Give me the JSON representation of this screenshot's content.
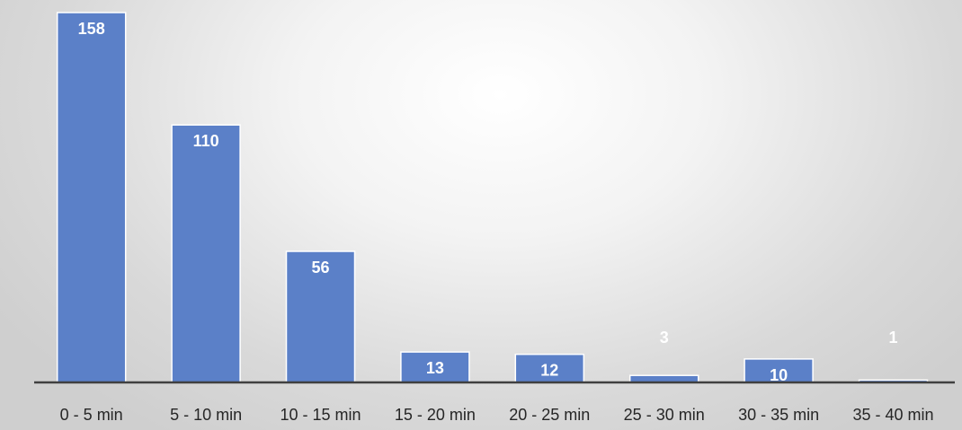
{
  "chart_data": {
    "type": "bar",
    "title": "",
    "xlabel": "",
    "ylabel": "",
    "categories": [
      "0 - 5 min",
      "5 - 10 min",
      "10 - 15 min",
      "15 - 20 min",
      "20 - 25 min",
      "25 - 30 min",
      "30 - 35 min",
      "35 - 40 min"
    ],
    "values": [
      158,
      110,
      56,
      13,
      12,
      3,
      10,
      1
    ],
    "data_labels": [
      "158",
      "110",
      "56",
      "13",
      "12",
      "3",
      "10",
      "1"
    ],
    "ylim": [
      0,
      158
    ],
    "grid": false,
    "legend": "none",
    "bar_color": "#5b80c8",
    "label_color": "#ffffff",
    "axis_color": "#404040"
  }
}
